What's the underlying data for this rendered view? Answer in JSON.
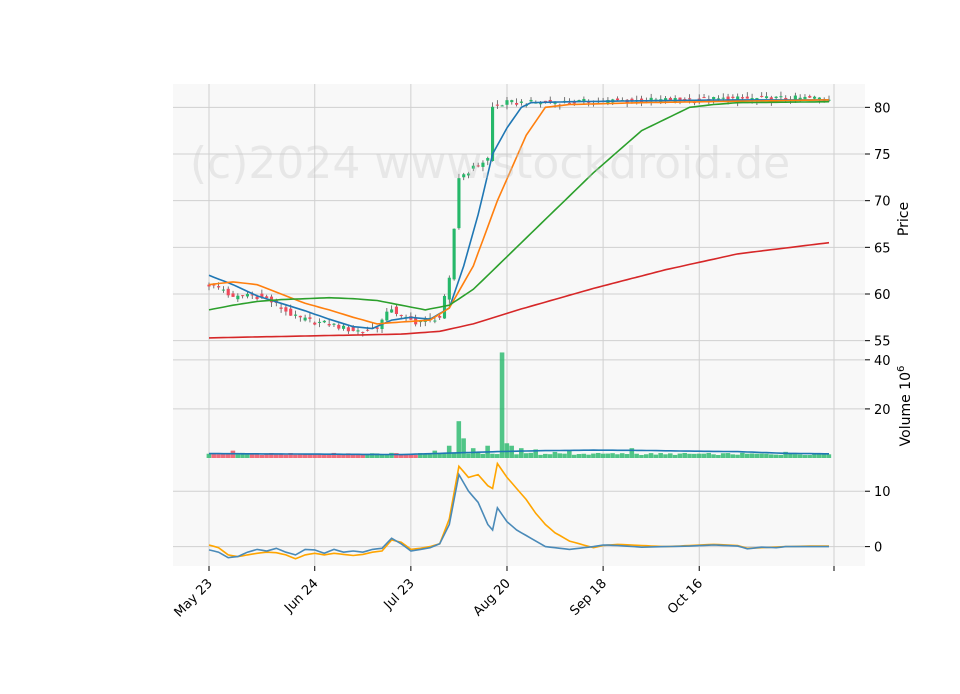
{
  "watermark": "(c)2024 www.stockdroid.de",
  "chart_data": {
    "type": "line",
    "title": "",
    "x_tick_labels": [
      "May 23",
      "Jun 24",
      "Jul 23",
      "Aug 20",
      "Sep 18",
      "Oct 16"
    ],
    "x_tick_index": [
      0,
      22,
      42,
      62,
      82,
      102
    ],
    "n_bars": 130,
    "colors": {
      "up": "#26b86a",
      "down": "#ef4a5b",
      "ma_short": "#1f77b4",
      "ma_mid": "#ff7f0e",
      "ma_long": "#2ca02c",
      "ma_xlong": "#d62728",
      "osc_fast": "#4a8ab8",
      "osc_slow": "#ffa500",
      "grid": "#d0d0d0",
      "panel_bg": "#f8f8f8"
    },
    "price_panel": {
      "ylabel": "Price",
      "ylim": [
        54,
        82.5
      ],
      "yticks": [
        55,
        60,
        65,
        70,
        75,
        80
      ],
      "close_knots": [
        [
          0,
          61
        ],
        [
          3,
          60.5
        ],
        [
          5,
          59.5
        ],
        [
          8,
          60
        ],
        [
          12,
          59.5
        ],
        [
          15,
          58.5
        ],
        [
          18,
          57.5
        ],
        [
          22,
          57
        ],
        [
          25,
          56.8
        ],
        [
          29,
          56.2
        ],
        [
          32,
          56
        ],
        [
          35,
          56.5
        ],
        [
          38,
          58.5
        ],
        [
          40,
          57.5
        ],
        [
          43,
          57
        ],
        [
          48,
          57.5
        ],
        [
          50,
          61.5
        ],
        [
          52,
          72.5
        ],
        [
          55,
          73.5
        ],
        [
          58,
          74.5
        ],
        [
          59,
          80
        ],
        [
          62,
          80.5
        ],
        [
          70,
          80.5
        ],
        [
          85,
          80.7
        ],
        [
          110,
          80.9
        ],
        [
          129,
          81
        ]
      ],
      "volume_series": [
        {
          "label": "ma_short",
          "knots": [
            [
              0,
              62
            ],
            [
              5,
              61
            ],
            [
              10,
              59.8
            ],
            [
              15,
              59
            ],
            [
              20,
              58.2
            ],
            [
              25,
              57.3
            ],
            [
              30,
              56.5
            ],
            [
              34,
              56.3
            ],
            [
              38,
              57.2
            ],
            [
              42,
              57.5
            ],
            [
              46,
              57.3
            ],
            [
              50,
              58.5
            ],
            [
              53,
              63
            ],
            [
              56,
              68.5
            ],
            [
              59,
              75
            ],
            [
              62,
              77.8
            ],
            [
              65,
              80
            ],
            [
              67,
              80.5
            ],
            [
              75,
              80.6
            ],
            [
              90,
              80.7
            ],
            [
              110,
              80.8
            ],
            [
              129,
              80.8
            ]
          ]
        },
        {
          "label": "ma_mid",
          "knots": [
            [
              0,
              61
            ],
            [
              5,
              61.3
            ],
            [
              10,
              61
            ],
            [
              15,
              60
            ],
            [
              20,
              59
            ],
            [
              25,
              58.3
            ],
            [
              30,
              57.5
            ],
            [
              35,
              56.8
            ],
            [
              40,
              57
            ],
            [
              46,
              57.2
            ],
            [
              50,
              58.5
            ],
            [
              55,
              63
            ],
            [
              60,
              70
            ],
            [
              66,
              77
            ],
            [
              70,
              80
            ],
            [
              75,
              80.3
            ],
            [
              90,
              80.5
            ],
            [
              129,
              80.8
            ]
          ]
        },
        {
          "label": "ma_long",
          "knots": [
            [
              0,
              58.3
            ],
            [
              5,
              58.8
            ],
            [
              10,
              59.2
            ],
            [
              15,
              59.4
            ],
            [
              20,
              59.5
            ],
            [
              25,
              59.6
            ],
            [
              30,
              59.5
            ],
            [
              35,
              59.3
            ],
            [
              40,
              58.8
            ],
            [
              45,
              58.3
            ],
            [
              50,
              58.8
            ],
            [
              55,
              60.5
            ],
            [
              60,
              63
            ],
            [
              70,
              68
            ],
            [
              80,
              73
            ],
            [
              90,
              77.5
            ],
            [
              100,
              80
            ],
            [
              105,
              80.3
            ],
            [
              110,
              80.5
            ],
            [
              129,
              80.6
            ]
          ]
        },
        {
          "label": "ma_xlong",
          "knots": [
            [
              0,
              55.3
            ],
            [
              10,
              55.4
            ],
            [
              20,
              55.5
            ],
            [
              30,
              55.6
            ],
            [
              40,
              55.7
            ],
            [
              48,
              56
            ],
            [
              55,
              56.8
            ],
            [
              65,
              58.4
            ],
            [
              80,
              60.6
            ],
            [
              95,
              62.6
            ],
            [
              110,
              64.3
            ],
            [
              129,
              65.5
            ]
          ]
        }
      ]
    },
    "volume_panel": {
      "ylabel": "Volume 10^6",
      "ylim": [
        0,
        44
      ],
      "yticks": [
        20,
        40
      ],
      "base_volume": 1.2,
      "spikes": [
        [
          5,
          3
        ],
        [
          15,
          1.5
        ],
        [
          30,
          1.5
        ],
        [
          47,
          3
        ],
        [
          50,
          5
        ],
        [
          52,
          15
        ],
        [
          53,
          8
        ],
        [
          55,
          4
        ],
        [
          58,
          5
        ],
        [
          61,
          43
        ],
        [
          62,
          6
        ],
        [
          63,
          5
        ],
        [
          65,
          4
        ],
        [
          68,
          3.5
        ],
        [
          72,
          2.5
        ],
        [
          75,
          3
        ],
        [
          80,
          1.8
        ],
        [
          88,
          4
        ],
        [
          95,
          1.5
        ],
        [
          105,
          1.5
        ],
        [
          115,
          1.8
        ],
        [
          120,
          2.5
        ]
      ],
      "ma_knots": [
        [
          0,
          1.8
        ],
        [
          20,
          1.6
        ],
        [
          40,
          1.4
        ],
        [
          50,
          2.0
        ],
        [
          60,
          2.6
        ],
        [
          70,
          3.0
        ],
        [
          80,
          3.2
        ],
        [
          90,
          3.1
        ],
        [
          100,
          2.8
        ],
        [
          110,
          2.6
        ],
        [
          120,
          1.9
        ],
        [
          129,
          1.7
        ]
      ]
    },
    "oscillator_panel": {
      "ylim": [
        -3.5,
        16
      ],
      "yticks": [
        0,
        10
      ],
      "fast_knots": [
        [
          0,
          -0.6
        ],
        [
          2,
          -1
        ],
        [
          4,
          -2
        ],
        [
          6,
          -1.8
        ],
        [
          8,
          -1
        ],
        [
          10,
          -0.5
        ],
        [
          12,
          -0.8
        ],
        [
          14,
          -0.3
        ],
        [
          16,
          -1
        ],
        [
          18,
          -1.5
        ],
        [
          20,
          -0.5
        ],
        [
          22,
          -0.6
        ],
        [
          24,
          -1.2
        ],
        [
          26,
          -0.5
        ],
        [
          28,
          -1
        ],
        [
          30,
          -0.8
        ],
        [
          32,
          -1
        ],
        [
          34,
          -0.5
        ],
        [
          36,
          -0.3
        ],
        [
          38,
          1.5
        ],
        [
          40,
          0.5
        ],
        [
          42,
          -0.8
        ],
        [
          44,
          -0.5
        ],
        [
          46,
          -0.2
        ],
        [
          48,
          0.5
        ],
        [
          50,
          4
        ],
        [
          52,
          13
        ],
        [
          54,
          10
        ],
        [
          56,
          8
        ],
        [
          58,
          4
        ],
        [
          59,
          3
        ],
        [
          60,
          7
        ],
        [
          62,
          4.5
        ],
        [
          64,
          3
        ],
        [
          66,
          2
        ],
        [
          68,
          1
        ],
        [
          70,
          0
        ],
        [
          75,
          -0.5
        ],
        [
          80,
          0
        ],
        [
          82,
          0.3
        ],
        [
          85,
          0.2
        ],
        [
          90,
          -0.1
        ],
        [
          95,
          0
        ],
        [
          100,
          0.1
        ],
        [
          105,
          0.3
        ],
        [
          110,
          0.1
        ],
        [
          112,
          -0.4
        ],
        [
          115,
          -0.1
        ],
        [
          118,
          -0.2
        ],
        [
          120,
          0
        ],
        [
          125,
          0
        ],
        [
          129,
          0
        ]
      ],
      "slow_knots": [
        [
          0,
          0.3
        ],
        [
          2,
          -0.2
        ],
        [
          4,
          -1.5
        ],
        [
          6,
          -1.8
        ],
        [
          8,
          -1.5
        ],
        [
          10,
          -1.2
        ],
        [
          12,
          -1
        ],
        [
          14,
          -1.1
        ],
        [
          16,
          -1.5
        ],
        [
          18,
          -2.2
        ],
        [
          20,
          -1.5
        ],
        [
          22,
          -1.2
        ],
        [
          24,
          -1.5
        ],
        [
          26,
          -1.2
        ],
        [
          28,
          -1.4
        ],
        [
          30,
          -1.6
        ],
        [
          32,
          -1.4
        ],
        [
          34,
          -1
        ],
        [
          36,
          -0.8
        ],
        [
          38,
          1.2
        ],
        [
          40,
          0.8
        ],
        [
          42,
          -0.5
        ],
        [
          44,
          -0.3
        ],
        [
          46,
          0
        ],
        [
          48,
          0.5
        ],
        [
          50,
          5
        ],
        [
          52,
          14.5
        ],
        [
          54,
          12.5
        ],
        [
          56,
          13
        ],
        [
          58,
          11
        ],
        [
          59,
          10.5
        ],
        [
          60,
          15
        ],
        [
          62,
          12.5
        ],
        [
          64,
          10.5
        ],
        [
          66,
          8.5
        ],
        [
          68,
          6
        ],
        [
          70,
          4
        ],
        [
          72,
          2.5
        ],
        [
          75,
          1
        ],
        [
          80,
          -0.2
        ],
        [
          82,
          0.2
        ],
        [
          85,
          0.4
        ],
        [
          90,
          0.2
        ],
        [
          95,
          0
        ],
        [
          100,
          0.2
        ],
        [
          105,
          0.4
        ],
        [
          110,
          0.2
        ],
        [
          112,
          -0.3
        ],
        [
          115,
          -0.2
        ],
        [
          120,
          0
        ],
        [
          125,
          0.1
        ],
        [
          129,
          0.1
        ]
      ]
    }
  }
}
